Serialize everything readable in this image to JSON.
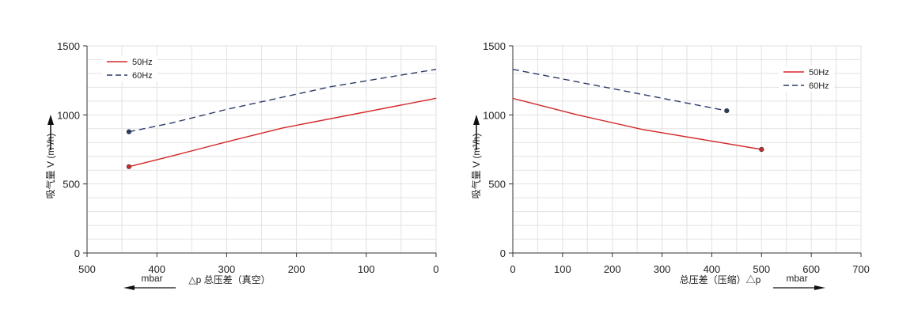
{
  "chart_data": [
    {
      "type": "line",
      "x_reversed": true,
      "xlim": [
        500,
        0
      ],
      "ylim": [
        0,
        1500
      ],
      "xticks": [
        500,
        400,
        300,
        200,
        100,
        0
      ],
      "yticks": [
        0,
        500,
        1000,
        1500
      ],
      "xlabel": "△p 总压差（真空）",
      "xunit": "mbar",
      "ylabel": "吸气量 V (m³/h)",
      "grid": true,
      "legend": "top-left",
      "series": [
        {
          "name": "50Hz",
          "color": "#d62728",
          "dash": false,
          "x": [
            440,
            380,
            300,
            220,
            0
          ],
          "y": [
            625,
            700,
            805,
            905,
            1120
          ]
        },
        {
          "name": "60Hz",
          "color": "#2b3a6b",
          "dash": true,
          "x": [
            440,
            380,
            300,
            150,
            0
          ],
          "y": [
            878,
            940,
            1040,
            1205,
            1330
          ]
        }
      ]
    },
    {
      "type": "line",
      "x_reversed": false,
      "xlim": [
        0,
        700
      ],
      "ylim": [
        0,
        1500
      ],
      "xticks": [
        0,
        100,
        200,
        300,
        400,
        500,
        600,
        700
      ],
      "yticks": [
        0,
        500,
        1000,
        1500
      ],
      "xlabel": "总压差（压缩）△p",
      "xunit": "mbar",
      "ylabel": "吸气量 V (m³/h)",
      "grid": true,
      "legend": "top-right",
      "series": [
        {
          "name": "50Hz",
          "color": "#d62728",
          "dash": false,
          "x": [
            0,
            130,
            260,
            500
          ],
          "y": [
            1120,
            1000,
            895,
            750
          ]
        },
        {
          "name": "60Hz",
          "color": "#2b3a6b",
          "dash": true,
          "x": [
            0,
            430
          ],
          "y": [
            1330,
            1030
          ]
        }
      ]
    }
  ]
}
